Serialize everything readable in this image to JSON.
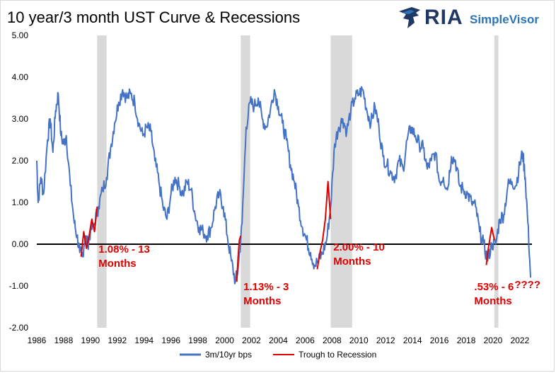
{
  "header": {
    "title": "10 year/3 month UST Curve & Recessions"
  },
  "logo": {
    "brand": "RIA",
    "product": "SimpleVisor"
  },
  "chart_data": {
    "type": "line",
    "title": "10 year/3 month UST Curve & Recessions",
    "xlabel": "",
    "ylabel": "",
    "xlim": [
      1986,
      2022.9
    ],
    "ylim": [
      -2.0,
      5.0
    ],
    "yticks": [
      "-2.00",
      "-1.00",
      "0.00",
      "1.00",
      "2.00",
      "3.00",
      "4.00",
      "5.00"
    ],
    "xticks": [
      "1986",
      "1988",
      "1990",
      "1992",
      "1994",
      "1996",
      "1998",
      "2000",
      "2002",
      "2004",
      "2006",
      "2008",
      "2010",
      "2012",
      "2014",
      "2016",
      "2018",
      "2020",
      "2022"
    ],
    "colors": {
      "series": "#4472c4",
      "trough": "#e00000",
      "recession": "#d9d9d9",
      "zero": "#000000"
    },
    "recessions": [
      [
        1990.5,
        1991.2
      ],
      [
        2001.2,
        2001.9
      ],
      [
        2007.9,
        2009.5
      ],
      [
        2020.1,
        2020.4
      ]
    ],
    "series": [
      {
        "name": "3m/10yr bps",
        "x": [
          1986.0,
          1986.1,
          1986.3,
          1986.5,
          1986.8,
          1987.0,
          1987.2,
          1987.4,
          1987.6,
          1987.8,
          1988.0,
          1988.2,
          1988.5,
          1988.8,
          1989.0,
          1989.2,
          1989.4,
          1989.6,
          1989.8,
          1990.0,
          1990.3,
          1990.6,
          1990.9,
          1991.2,
          1991.5,
          1991.8,
          1992.1,
          1992.4,
          1992.7,
          1993.0,
          1993.3,
          1993.6,
          1993.9,
          1994.2,
          1994.5,
          1994.8,
          1995.1,
          1995.4,
          1995.7,
          1996.0,
          1996.3,
          1996.6,
          1996.9,
          1997.2,
          1997.5,
          1997.8,
          1998.1,
          1998.4,
          1998.7,
          1999.0,
          1999.3,
          1999.6,
          1999.9,
          2000.2,
          2000.5,
          2000.8,
          2001.0,
          2001.3,
          2001.6,
          2001.9,
          2002.2,
          2002.5,
          2002.8,
          2003.1,
          2003.4,
          2003.7,
          2004.0,
          2004.3,
          2004.6,
          2004.9,
          2005.2,
          2005.5,
          2005.8,
          2006.1,
          2006.4,
          2006.7,
          2007.0,
          2007.3,
          2007.6,
          2007.9,
          2008.2,
          2008.5,
          2008.8,
          2009.1,
          2009.4,
          2009.7,
          2010.0,
          2010.3,
          2010.6,
          2010.9,
          2011.2,
          2011.5,
          2011.8,
          2012.1,
          2012.4,
          2012.7,
          2013.0,
          2013.3,
          2013.6,
          2013.9,
          2014.2,
          2014.5,
          2014.8,
          2015.1,
          2015.4,
          2015.7,
          2016.0,
          2016.3,
          2016.6,
          2016.9,
          2017.2,
          2017.5,
          2017.8,
          2018.1,
          2018.4,
          2018.7,
          2019.0,
          2019.3,
          2019.6,
          2019.9,
          2020.2,
          2020.5,
          2020.8,
          2021.1,
          2021.4,
          2021.7,
          2022.0,
          2022.2,
          2022.4,
          2022.6,
          2022.8
        ],
        "y": [
          2.0,
          1.0,
          1.6,
          1.2,
          2.5,
          3.0,
          2.2,
          3.2,
          3.6,
          2.6,
          2.4,
          2.6,
          1.4,
          0.5,
          0.2,
          -0.2,
          -0.3,
          0.2,
          0.0,
          0.3,
          0.5,
          0.9,
          1.3,
          1.6,
          2.3,
          2.9,
          3.4,
          3.7,
          3.5,
          3.6,
          3.4,
          2.9,
          2.6,
          2.8,
          2.7,
          2.0,
          1.5,
          0.9,
          0.6,
          1.2,
          1.6,
          1.4,
          1.2,
          1.5,
          1.3,
          0.7,
          0.4,
          0.3,
          0.2,
          0.4,
          0.9,
          1.2,
          0.9,
          0.2,
          -0.4,
          -0.9,
          -0.6,
          0.5,
          2.8,
          3.4,
          3.3,
          3.5,
          3.0,
          2.8,
          3.2,
          3.7,
          3.3,
          2.9,
          2.5,
          1.9,
          1.5,
          0.9,
          0.4,
          0.1,
          -0.2,
          -0.5,
          -0.4,
          -0.2,
          0.1,
          0.9,
          2.4,
          2.8,
          3.0,
          2.7,
          3.2,
          3.5,
          3.6,
          3.7,
          3.2,
          2.9,
          3.3,
          2.8,
          2.1,
          1.9,
          1.7,
          1.6,
          2.0,
          1.8,
          2.5,
          2.8,
          2.6,
          2.4,
          2.3,
          1.8,
          2.0,
          2.2,
          1.5,
          1.6,
          1.3,
          2.1,
          2.0,
          1.4,
          1.3,
          1.2,
          1.0,
          0.9,
          0.3,
          0.0,
          -0.4,
          0.0,
          0.0,
          0.6,
          0.7,
          1.4,
          1.5,
          1.4,
          1.9,
          2.2,
          1.6,
          0.5,
          -0.8
        ]
      },
      {
        "name": "Trough to Recession",
        "segments": [
          {
            "x": [
              1989.3,
              1989.5,
              1989.7,
              1989.9,
              1990.1,
              1990.3,
              1990.5
            ],
            "y": [
              -0.3,
              0.3,
              -0.1,
              0.2,
              0.6,
              0.3,
              0.9
            ]
          },
          {
            "x": [
              2000.9,
              2001.0,
              2001.1,
              2001.2
            ],
            "y": [
              -0.9,
              -0.3,
              0.1,
              0.2
            ]
          },
          {
            "x": [
              2006.9,
              2007.1,
              2007.3,
              2007.5,
              2007.7,
              2007.9
            ],
            "y": [
              -0.6,
              -0.2,
              0.1,
              0.6,
              1.5,
              0.6
            ]
          },
          {
            "x": [
              2019.5,
              2019.6,
              2019.8,
              2019.9,
              2020.1
            ],
            "y": [
              -0.5,
              -0.2,
              0.2,
              0.4,
              0.1
            ]
          }
        ]
      }
    ],
    "annotations": [
      {
        "x": 1990.6,
        "y": -0.2,
        "lines": [
          "1.08% - 13",
          "Months"
        ]
      },
      {
        "x": 2001.4,
        "y": -1.1,
        "lines": [
          "1.13% - 3",
          "Months"
        ]
      },
      {
        "x": 2008.1,
        "y": -0.15,
        "lines": [
          "2.00% - 10",
          "Months"
        ]
      },
      {
        "x": 2018.6,
        "y": -1.1,
        "lines": [
          ".53% - 6",
          "Months"
        ]
      },
      {
        "x": 2021.6,
        "y": -1.05,
        "lines": [
          "????"
        ]
      }
    ],
    "legend": {
      "position": "bottom",
      "entries": [
        "3m/10yr bps",
        "Trough to Recession"
      ]
    }
  }
}
